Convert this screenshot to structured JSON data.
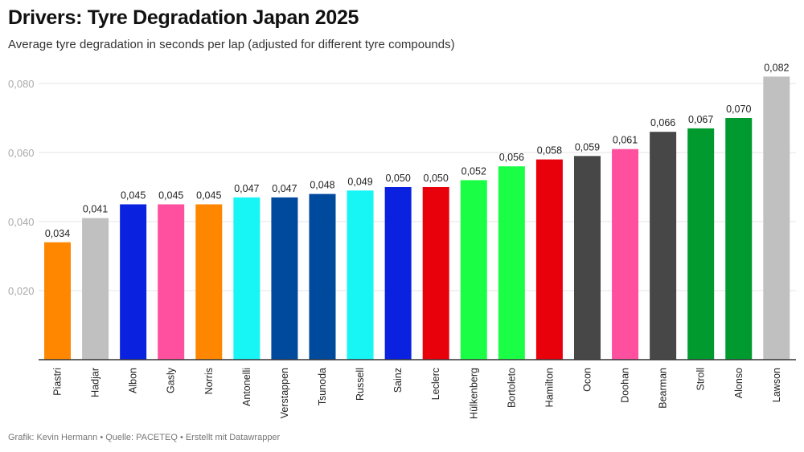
{
  "title": "Drivers: Tyre Degradation Japan 2025",
  "subtitle": "Average tyre degradation in seconds per lap (adjusted for different tyre compounds)",
  "footer": "Grafik: Kevin Hermann • Quelle: PACETEQ • Erstellt mit Datawrapper",
  "chart_data": {
    "type": "bar",
    "title": "Drivers: Tyre Degradation Japan 2025",
    "xlabel": "",
    "ylabel": "",
    "ylim": [
      0,
      0.082
    ],
    "yticks": [
      0.02,
      0.04,
      0.06,
      0.08
    ],
    "ytick_labels": [
      "0,020",
      "0,040",
      "0,060",
      "0,080"
    ],
    "grid": true,
    "categories": [
      "Piastri",
      "Hadjar",
      "Albon",
      "Gasly",
      "Norris",
      "Antonelli",
      "Verstappen",
      "Tsunoda",
      "Russell",
      "Sainz",
      "Leclerc",
      "Hülkenberg",
      "Bortoleto",
      "Hamilton",
      "Ocon",
      "Doohan",
      "Bearman",
      "Stroll",
      "Alonso",
      "Lawson"
    ],
    "values": [
      0.034,
      0.041,
      0.045,
      0.045,
      0.045,
      0.047,
      0.047,
      0.048,
      0.049,
      0.05,
      0.05,
      0.052,
      0.056,
      0.058,
      0.059,
      0.061,
      0.066,
      0.067,
      0.07,
      0.082
    ],
    "value_labels": [
      "0,034",
      "0,041",
      "0,045",
      "0,045",
      "0,045",
      "0,047",
      "0,047",
      "0,048",
      "0,049",
      "0,050",
      "0,050",
      "0,052",
      "0,056",
      "0,058",
      "0,059",
      "0,061",
      "0,066",
      "0,067",
      "0,070",
      "0,082"
    ],
    "colors": [
      "#ff8700",
      "#c0c0c0",
      "#0a22e0",
      "#ff50a0",
      "#ff8700",
      "#17f5f5",
      "#004a9e",
      "#004a9e",
      "#17f5f5",
      "#0a22e0",
      "#e8000b",
      "#1aff45",
      "#1aff45",
      "#e8000b",
      "#474747",
      "#ff50a0",
      "#474747",
      "#009a2e",
      "#009a2e",
      "#c0c0c0"
    ]
  }
}
